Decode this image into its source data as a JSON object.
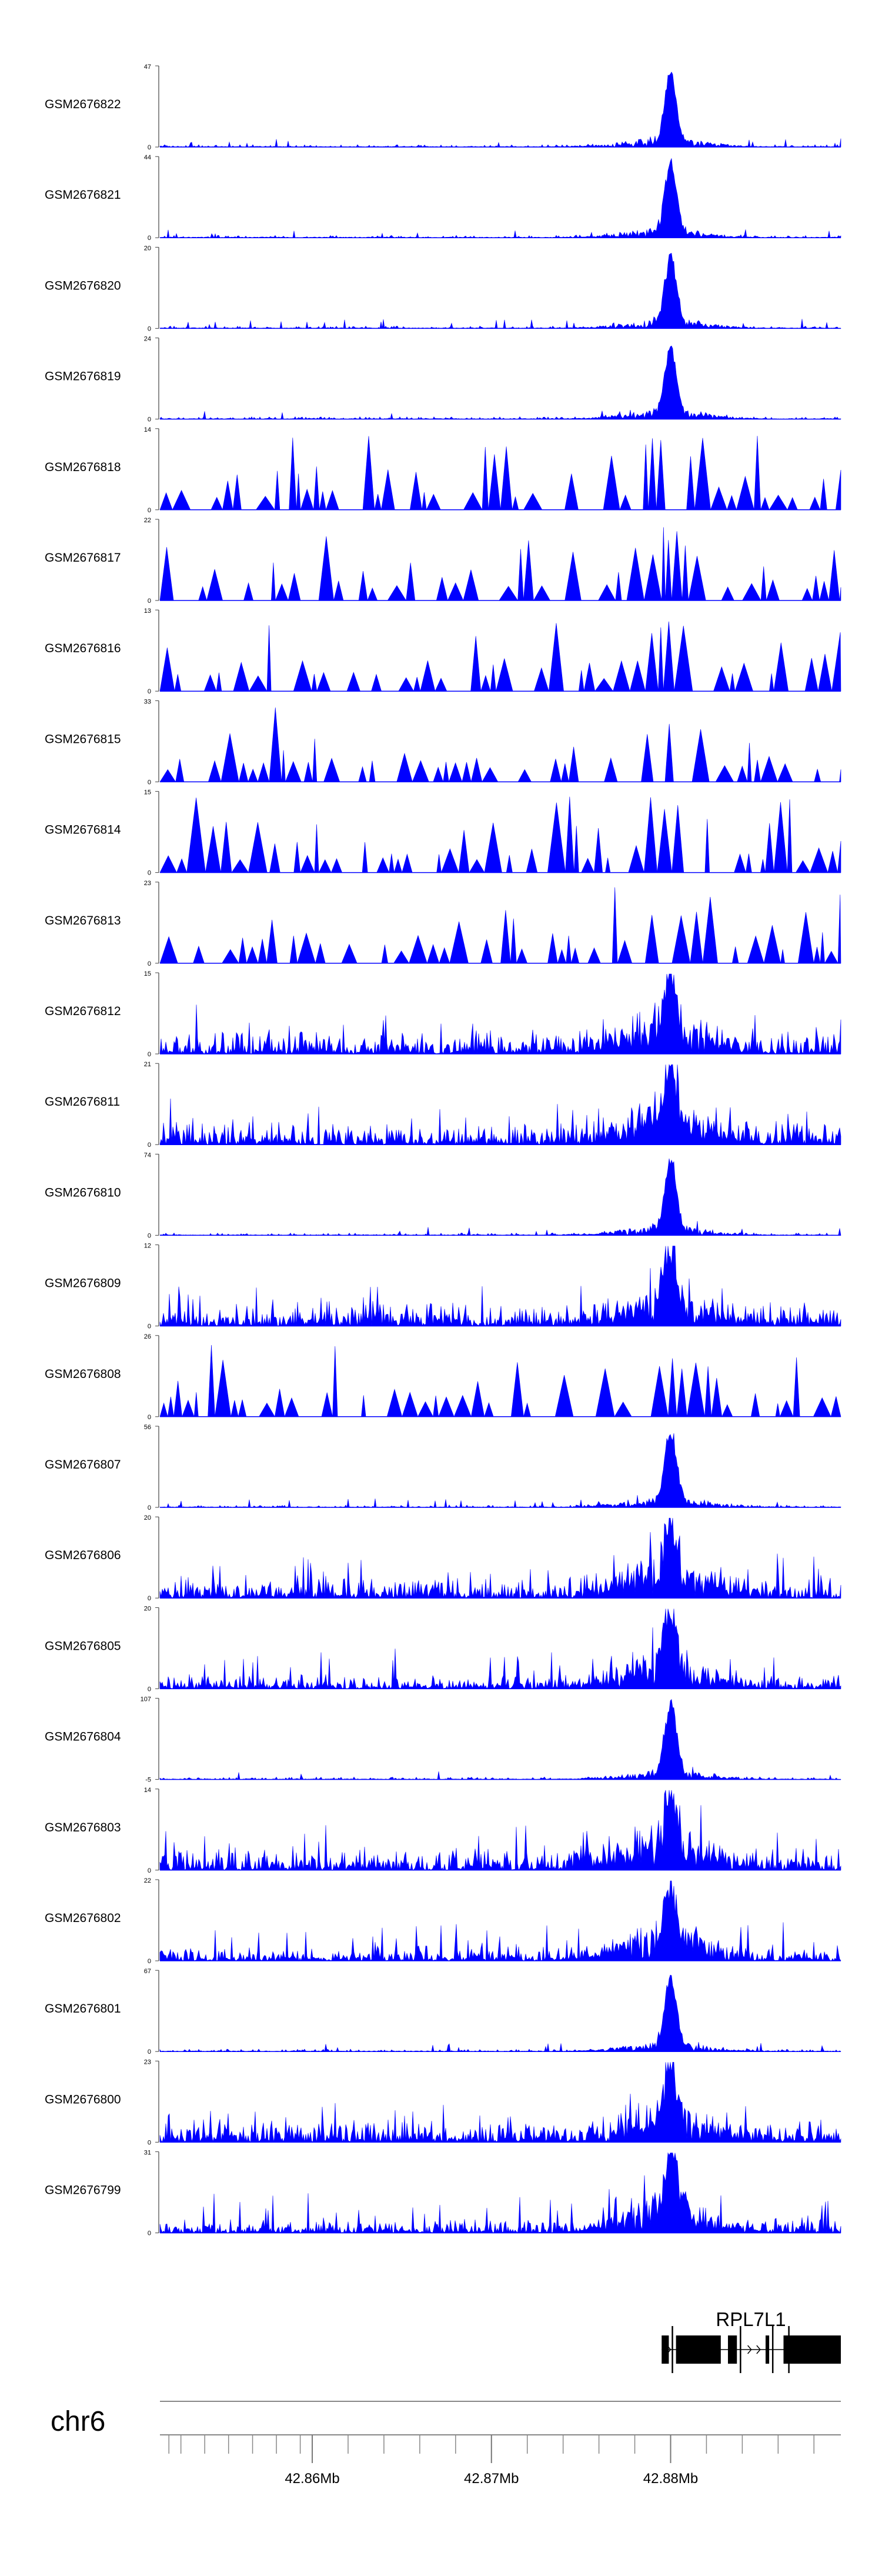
{
  "chart_data": {
    "type": "area",
    "title": "",
    "colors": {
      "fill": "#0000ff",
      "axis": "#444444",
      "text": "#000000",
      "gene": "#000000"
    },
    "chromosome": "chr6",
    "x_unit": "Mb",
    "xlim": [
      42.8515,
      42.8895
    ],
    "x_ticks": [
      42.852,
      42.85267,
      42.854,
      42.85533,
      42.85667,
      42.858,
      42.85933,
      42.86,
      42.862,
      42.864,
      42.866,
      42.868,
      42.87,
      42.872,
      42.874,
      42.876,
      42.878,
      42.88,
      42.882,
      42.884,
      42.886,
      42.888
    ],
    "x_tick_labels": [
      {
        "value": 42.86,
        "label": "42.86Mb"
      },
      {
        "value": 42.87,
        "label": "42.87Mb"
      },
      {
        "value": 42.88,
        "label": "42.88Mb"
      }
    ],
    "gene": {
      "name": "RPL7L1",
      "start": 42.8795,
      "end": 42.8895,
      "exons": [
        {
          "start": 42.8795,
          "end": 42.8799
        },
        {
          "start": 42.8803,
          "end": 42.8828
        },
        {
          "start": 42.8832,
          "end": 42.8837
        },
        {
          "start": 42.8853,
          "end": 42.8855
        },
        {
          "start": 42.8863,
          "end": 42.8895
        }
      ]
    },
    "series": [
      {
        "name": "GSM2676822",
        "ymax": 47,
        "yticks": [
          "47",
          "0"
        ],
        "pattern": "sharp",
        "peak": 0.92
      },
      {
        "name": "GSM2676821",
        "ymax": 44,
        "yticks": [
          "44",
          "0"
        ],
        "pattern": "sharp",
        "peak": 0.95
      },
      {
        "name": "GSM2676820",
        "ymax": 20,
        "yticks": [
          "20",
          "0"
        ],
        "pattern": "sharp",
        "peak": 0.9
      },
      {
        "name": "GSM2676819",
        "ymax": 24,
        "yticks": [
          "24",
          "0"
        ],
        "pattern": "sharp",
        "peak": 0.92
      },
      {
        "name": "GSM2676818",
        "ymax": 14,
        "yticks": [
          "14",
          "0"
        ],
        "pattern": "spiky",
        "peak": 0.95
      },
      {
        "name": "GSM2676817",
        "ymax": 22,
        "yticks": [
          "22",
          "0"
        ],
        "pattern": "spiky",
        "peak": 0.92
      },
      {
        "name": "GSM2676816",
        "ymax": 13,
        "yticks": [
          "13",
          "0"
        ],
        "pattern": "spiky",
        "peak": 1.0
      },
      {
        "name": "GSM2676815",
        "ymax": 33,
        "yticks": [
          "33",
          "0"
        ],
        "pattern": "spiky",
        "peak": 0.92
      },
      {
        "name": "GSM2676814",
        "ymax": 15,
        "yticks": [
          "15",
          "0"
        ],
        "pattern": "spiky",
        "peak": 0.95
      },
      {
        "name": "GSM2676813",
        "ymax": 23,
        "yticks": [
          "23",
          "0"
        ],
        "pattern": "spiky",
        "peak": 0.9
      },
      {
        "name": "GSM2676812",
        "ymax": 15,
        "yticks": [
          "15",
          "0"
        ],
        "pattern": "dense",
        "peak": 0.95
      },
      {
        "name": "GSM2676811",
        "ymax": 21,
        "yticks": [
          "21",
          "0"
        ],
        "pattern": "dense",
        "peak": 0.92
      },
      {
        "name": "GSM2676810",
        "ymax": 74,
        "yticks": [
          "74",
          "0"
        ],
        "pattern": "sharp",
        "peak": 0.95
      },
      {
        "name": "GSM2676809",
        "ymax": 12,
        "yticks": [
          "12",
          "0"
        ],
        "pattern": "dense",
        "peak": 0.96
      },
      {
        "name": "GSM2676808",
        "ymax": 26,
        "yticks": [
          "26",
          "0"
        ],
        "pattern": "spiky",
        "peak": 1.0
      },
      {
        "name": "GSM2676807",
        "ymax": 56,
        "yticks": [
          "56",
          "0"
        ],
        "pattern": "sharp",
        "peak": 0.95
      },
      {
        "name": "GSM2676806",
        "ymax": 20,
        "yticks": [
          "20",
          "0"
        ],
        "pattern": "dense",
        "peak": 0.96
      },
      {
        "name": "GSM2676805",
        "ymax": 20,
        "yticks": [
          "20",
          "0"
        ],
        "pattern": "medium",
        "peak": 0.96
      },
      {
        "name": "GSM2676804",
        "ymax": 107,
        "yticks": [
          "107",
          "-5"
        ],
        "pattern": "sharp",
        "peak": 0.95
      },
      {
        "name": "GSM2676803",
        "ymax": 14,
        "yticks": [
          "14",
          "0"
        ],
        "pattern": "dense",
        "peak": 0.96
      },
      {
        "name": "GSM2676802",
        "ymax": 22,
        "yticks": [
          "22",
          "0"
        ],
        "pattern": "medium",
        "peak": 0.95
      },
      {
        "name": "GSM2676801",
        "ymax": 67,
        "yticks": [
          "67",
          "0"
        ],
        "pattern": "sharp",
        "peak": 0.92
      },
      {
        "name": "GSM2676800",
        "ymax": 23,
        "yticks": [
          "23",
          "0"
        ],
        "pattern": "dense",
        "peak": 0.94
      },
      {
        "name": "GSM2676799",
        "ymax": 31,
        "yticks": [
          "31",
          "0"
        ],
        "pattern": "medium",
        "peak": 0.92
      }
    ]
  }
}
